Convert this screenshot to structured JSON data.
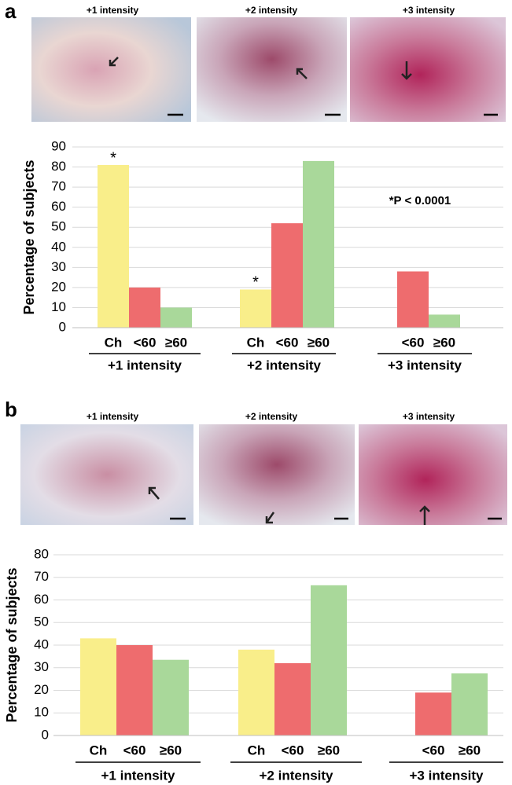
{
  "chart_data": [
    {
      "type": "bar",
      "panel_label": "a",
      "image_titles": [
        "+1 intensity",
        "+2 intensity",
        "+3 intensity"
      ],
      "y_label": "Percentage of subjects",
      "categories": [
        "+1 intensity",
        "+2 intensity",
        "+3 intensity"
      ],
      "series": [
        {
          "name": "Ch",
          "color": "#f9ee8a",
          "values": [
            81,
            19,
            null
          ],
          "significance_marks": [
            "*",
            "*",
            null
          ]
        },
        {
          "name": "<60",
          "color": "#ee6c6e",
          "values": [
            20,
            52,
            28
          ]
        },
        {
          "name": "≥60",
          "color": "#a9d89a",
          "values": [
            10,
            83,
            6.5
          ]
        }
      ],
      "ylim": [
        0,
        90
      ],
      "yticks": [
        0,
        10,
        20,
        30,
        40,
        50,
        60,
        70,
        80,
        90
      ],
      "grid": true,
      "annotation": "*P < 0.0001"
    },
    {
      "type": "bar",
      "panel_label": "b",
      "image_titles": [
        "+1 intensity",
        "+2 intensity",
        "+3 intensity"
      ],
      "y_label": "Percentage of subjects",
      "categories": [
        "+1 intensity",
        "+2 intensity",
        "+3 intensity"
      ],
      "series": [
        {
          "name": "Ch",
          "color": "#f9ee8a",
          "values": [
            43,
            38,
            null
          ]
        },
        {
          "name": "<60",
          "color": "#ee6c6e",
          "values": [
            40,
            32,
            19
          ]
        },
        {
          "name": "≥60",
          "color": "#a9d89a",
          "values": [
            33.5,
            66.5,
            27.5
          ]
        }
      ],
      "ylim": [
        0,
        80
      ],
      "yticks": [
        0,
        10,
        20,
        30,
        40,
        50,
        60,
        70,
        80
      ],
      "grid": true
    }
  ]
}
